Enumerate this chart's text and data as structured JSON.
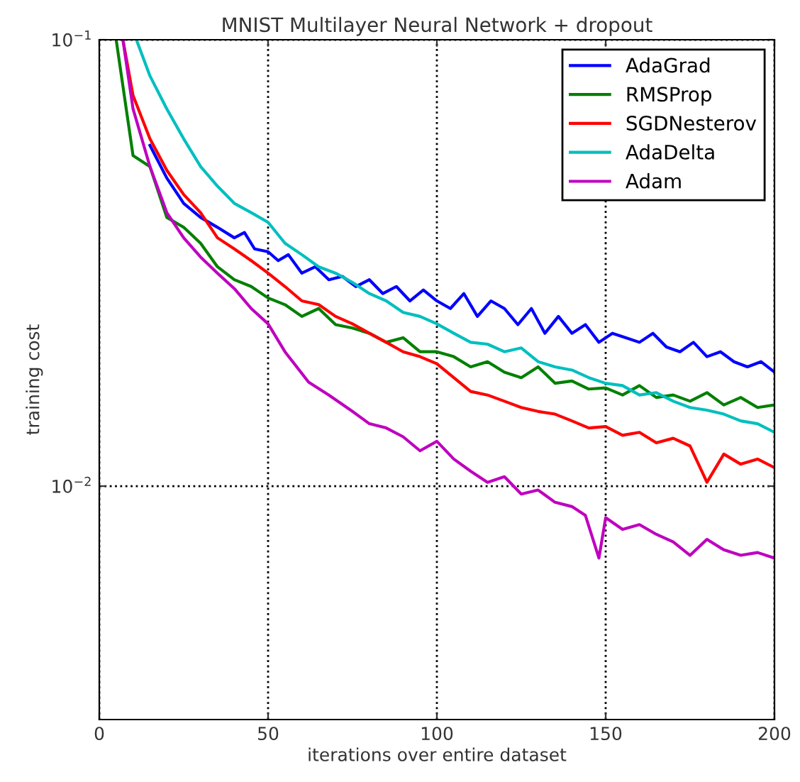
{
  "chart_data": {
    "type": "line",
    "title": "MNIST Multilayer Neural Network + dropout",
    "xlabel": "iterations over entire dataset",
    "ylabel": "training cost",
    "log": "y",
    "grid": true,
    "legend": "top right",
    "line_style": "solid",
    "marker": "none",
    "xlim": [
      0,
      200
    ],
    "xticks": [
      0,
      50,
      100,
      150,
      200
    ],
    "ylim": [
      0.003,
      0.1
    ],
    "yticks": [
      {
        "value": 0.01,
        "label": "10$^{−2}$"
      },
      {
        "value": 0.1,
        "label": "10$^{−1}$"
      }
    ],
    "series": [
      {
        "name": "AdaGrad",
        "color": "#0000ff",
        "x": [
          15,
          20,
          25,
          30,
          35,
          40,
          43,
          46,
          50,
          53,
          56,
          60,
          64,
          68,
          72,
          76,
          80,
          84,
          88,
          92,
          96,
          100,
          104,
          108,
          112,
          116,
          120,
          124,
          128,
          132,
          136,
          140,
          144,
          148,
          152,
          156,
          160,
          164,
          168,
          172,
          176,
          180,
          184,
          188,
          192,
          196,
          200
        ],
        "values": [
          0.058,
          0.049,
          0.043,
          0.04,
          0.038,
          0.036,
          0.037,
          0.034,
          0.0335,
          0.032,
          0.033,
          0.03,
          0.031,
          0.029,
          0.0295,
          0.028,
          0.029,
          0.027,
          0.028,
          0.026,
          0.0275,
          0.026,
          0.025,
          0.027,
          0.024,
          0.026,
          0.025,
          0.023,
          0.025,
          0.022,
          0.024,
          0.022,
          0.023,
          0.021,
          0.022,
          0.0215,
          0.021,
          0.022,
          0.0205,
          0.02,
          0.021,
          0.0195,
          0.02,
          0.019,
          0.0185,
          0.019,
          0.018
        ]
      },
      {
        "name": "RMSProp",
        "color": "#008000",
        "x": [
          5,
          10,
          15,
          20,
          25,
          30,
          35,
          40,
          45,
          50,
          55,
          60,
          65,
          70,
          75,
          80,
          85,
          90,
          95,
          100,
          105,
          110,
          115,
          120,
          125,
          130,
          135,
          140,
          145,
          150,
          155,
          160,
          165,
          170,
          175,
          180,
          185,
          190,
          195,
          200
        ],
        "values": [
          0.1,
          0.055,
          0.052,
          0.04,
          0.038,
          0.035,
          0.031,
          0.029,
          0.028,
          0.0264,
          0.0255,
          0.024,
          0.025,
          0.023,
          0.0226,
          0.022,
          0.021,
          0.0215,
          0.02,
          0.02,
          0.0195,
          0.0185,
          0.019,
          0.018,
          0.0175,
          0.0185,
          0.017,
          0.0172,
          0.0165,
          0.0166,
          0.016,
          0.0168,
          0.0158,
          0.016,
          0.0155,
          0.0162,
          0.0152,
          0.0158,
          0.015,
          0.0152
        ]
      },
      {
        "name": "SGDNesterov",
        "color": "#ff0000",
        "x": [
          7,
          10,
          15,
          20,
          25,
          30,
          35,
          40,
          45,
          50,
          55,
          60,
          65,
          70,
          75,
          80,
          85,
          90,
          95,
          100,
          105,
          110,
          115,
          120,
          125,
          130,
          135,
          140,
          145,
          150,
          155,
          160,
          165,
          170,
          175,
          180,
          185,
          190,
          195,
          200
        ],
        "values": [
          0.1,
          0.075,
          0.06,
          0.051,
          0.045,
          0.041,
          0.036,
          0.034,
          0.032,
          0.03,
          0.028,
          0.026,
          0.0255,
          0.024,
          0.0231,
          0.022,
          0.021,
          0.02,
          0.0195,
          0.0188,
          0.0175,
          0.0163,
          0.016,
          0.0155,
          0.015,
          0.0147,
          0.0145,
          0.014,
          0.0135,
          0.0136,
          0.013,
          0.0132,
          0.0125,
          0.0128,
          0.0123,
          0.0102,
          0.0118,
          0.0112,
          0.0115,
          0.011
        ]
      },
      {
        "name": "AdaDelta",
        "color": "#00bfbf",
        "x": [
          11,
          15,
          20,
          25,
          30,
          35,
          40,
          45,
          50,
          55,
          60,
          65,
          70,
          75,
          80,
          85,
          90,
          95,
          100,
          105,
          110,
          115,
          120,
          125,
          130,
          135,
          140,
          145,
          150,
          155,
          160,
          165,
          170,
          175,
          180,
          185,
          190,
          195,
          200
        ],
        "values": [
          0.1,
          0.083,
          0.07,
          0.06,
          0.052,
          0.047,
          0.043,
          0.041,
          0.039,
          0.035,
          0.033,
          0.031,
          0.03,
          0.0286,
          0.027,
          0.026,
          0.0245,
          0.024,
          0.0231,
          0.022,
          0.021,
          0.0208,
          0.02,
          0.0204,
          0.019,
          0.0185,
          0.0182,
          0.0175,
          0.017,
          0.0168,
          0.016,
          0.0162,
          0.0155,
          0.015,
          0.0148,
          0.0145,
          0.014,
          0.0138,
          0.0132
        ]
      },
      {
        "name": "Adam",
        "color": "#bf00bf",
        "x": [
          7,
          10,
          15,
          20,
          25,
          30,
          35,
          40,
          45,
          50,
          55,
          62,
          68,
          75,
          80,
          85,
          90,
          95,
          100,
          105,
          110,
          115,
          120,
          125,
          130,
          135,
          140,
          144,
          148,
          150,
          155,
          160,
          165,
          170,
          175,
          180,
          185,
          190,
          195,
          200
        ],
        "values": [
          0.1,
          0.07,
          0.052,
          0.041,
          0.036,
          0.0326,
          0.03,
          0.0277,
          0.025,
          0.0231,
          0.02,
          0.0171,
          0.016,
          0.0147,
          0.0138,
          0.0135,
          0.0129,
          0.012,
          0.0126,
          0.0115,
          0.0108,
          0.0102,
          0.0105,
          0.0096,
          0.0098,
          0.0092,
          0.009,
          0.0086,
          0.0069,
          0.0085,
          0.008,
          0.0082,
          0.0078,
          0.0075,
          0.007,
          0.0076,
          0.0072,
          0.007,
          0.0071,
          0.0069
        ]
      }
    ]
  }
}
